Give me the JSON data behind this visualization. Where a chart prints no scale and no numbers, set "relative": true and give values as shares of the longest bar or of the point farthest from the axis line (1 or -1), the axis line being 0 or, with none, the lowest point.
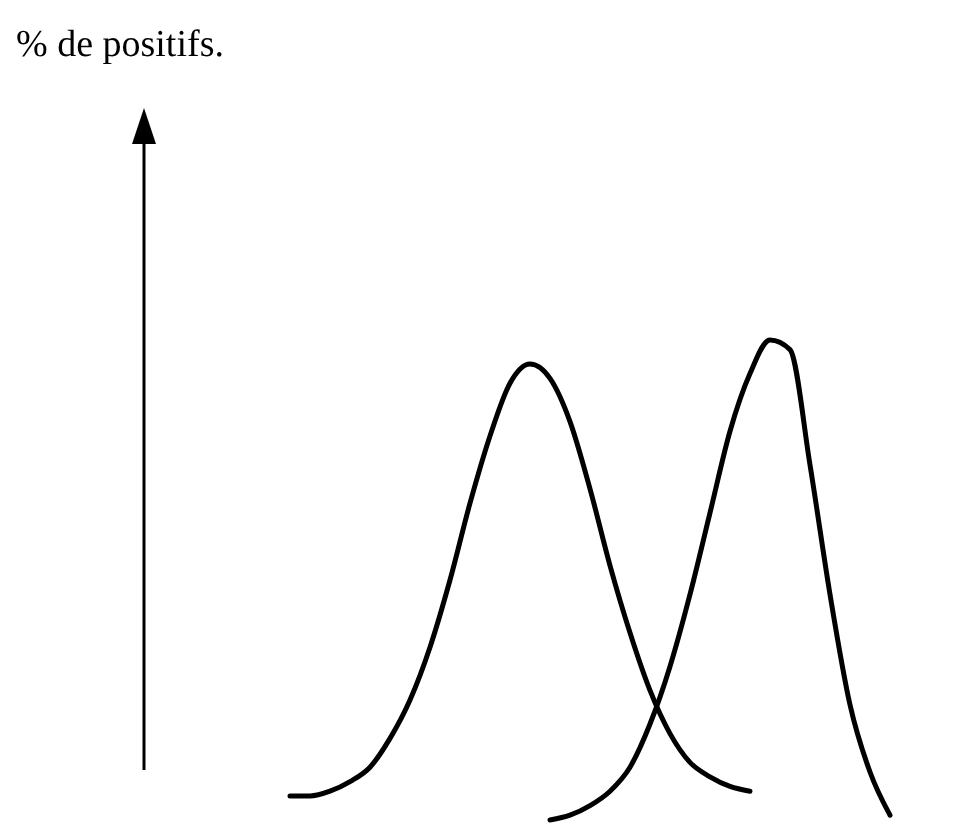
{
  "chart_data": {
    "type": "line",
    "annotations": [
      "% de positifs."
    ],
    "relative": true,
    "categories": [
      null,
      null,
      null,
      null,
      null,
      null,
      null,
      null,
      null,
      null,
      null,
      null,
      null,
      null,
      null,
      null,
      null,
      null,
      null,
      null,
      null,
      null,
      null,
      null,
      null,
      null,
      null,
      null,
      null,
      null,
      null
    ],
    "series": [
      {
        "color": "#000000",
        "values": [
          0.05,
          0.05,
          0.06,
          0.08,
          0.11,
          0.17,
          0.25,
          0.36,
          0.5,
          0.66,
          0.8,
          0.91,
          0.95,
          0.92,
          0.83,
          0.69,
          0.53,
          0.39,
          0.27,
          0.18,
          0.12,
          0.09,
          0.07,
          0.06,
          null,
          null,
          null,
          null,
          null,
          null,
          null
        ]
      },
      {
        "color": "#000000",
        "values": [
          null,
          null,
          null,
          null,
          null,
          null,
          null,
          null,
          null,
          null,
          null,
          null,
          null,
          0,
          0.01,
          0.03,
          0.06,
          0.11,
          0.2,
          0.32,
          0.47,
          0.64,
          0.81,
          0.93,
          1,
          0.98,
          0.74,
          0.47,
          0.24,
          0.1,
          0.01
        ]
      }
    ]
  }
}
